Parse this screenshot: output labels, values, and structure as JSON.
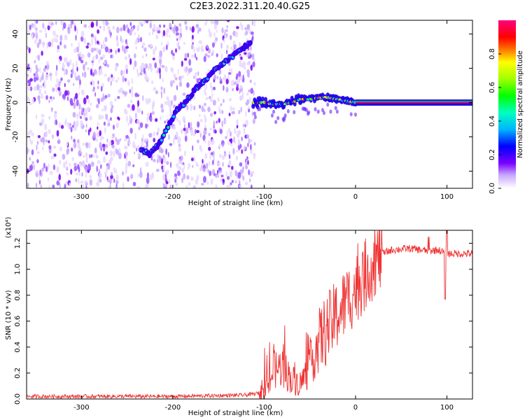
{
  "title": "C2E3.2022.311.20.40.G25",
  "chart_data": [
    {
      "type": "heatmap",
      "xlabel": "Height of straight line (km)",
      "ylabel": "Frequency (Hz)",
      "xlim": [
        -360,
        128
      ],
      "ylim": [
        -50,
        48
      ],
      "xticks": [
        -300,
        -200,
        -100,
        0,
        100
      ],
      "yticks": [
        -40,
        -20,
        0,
        20,
        40
      ],
      "colorbar": {
        "label": "Normalized spectral amplitude",
        "range": [
          0,
          1
        ],
        "ticks": [
          "0.0",
          "0.2",
          "0.4",
          "0.6",
          "0.8"
        ]
      },
      "noise_region": [
        -360,
        -110
      ],
      "chirp_track": {
        "x": [
          -235,
          -225,
          -215,
          -205,
          -195,
          -185,
          -175,
          -165,
          -155,
          -145,
          -135,
          -125,
          -115
        ],
        "y": [
          -28,
          -30,
          -24,
          -14,
          -4,
          1,
          8,
          13,
          19,
          23,
          27,
          31,
          35
        ]
      },
      "carrier_track": {
        "x": [
          -110,
          -100,
          -90,
          -80,
          -70,
          -60,
          -50,
          -40,
          -30,
          -20,
          -10,
          0,
          50,
          128
        ],
        "y": [
          0,
          0,
          -1,
          -1,
          0,
          2,
          2,
          3,
          3,
          2,
          1,
          0,
          0,
          0
        ]
      }
    },
    {
      "type": "line",
      "xlabel": "Height of straight line (km)",
      "ylabel": "SNR (10 * v/v)",
      "y_multiplier": "(x10⁴)",
      "xlim": [
        -360,
        128
      ],
      "ylim": [
        0,
        1.3
      ],
      "xticks": [
        -300,
        -200,
        -100,
        0,
        100
      ],
      "yticks": [
        "0.0",
        "0.2",
        "0.4",
        "0.6",
        "0.8",
        "1.0",
        "1.2"
      ],
      "series": [
        {
          "color": "#ee3333",
          "x": [
            -360,
            -300,
            -200,
            -120,
            -100,
            -95,
            -90,
            -80,
            -70,
            -60,
            -50,
            -40,
            -30,
            -20,
            -10,
            0,
            10,
            20,
            30,
            40,
            60,
            80,
            90,
            100,
            110,
            128
          ],
          "y": [
            0.02,
            0.02,
            0.02,
            0.03,
            0.05,
            0.12,
            0.22,
            0.25,
            0.15,
            0.12,
            0.25,
            0.45,
            0.55,
            0.65,
            0.75,
            0.85,
            0.95,
            1.05,
            1.12,
            1.15,
            1.16,
            1.14,
            1.15,
            1.12,
            1.12,
            1.12
          ]
        }
      ]
    }
  ]
}
